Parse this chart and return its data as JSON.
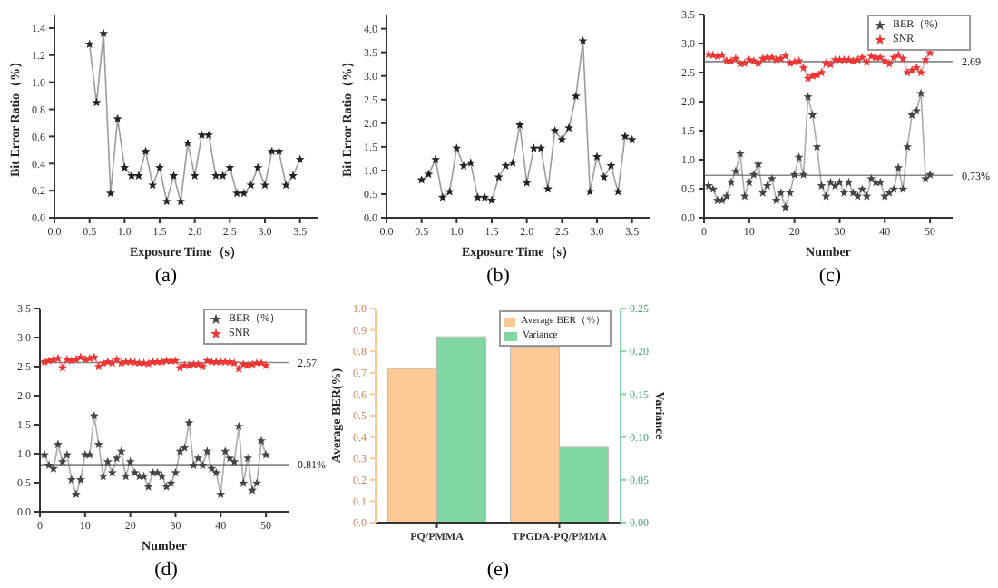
{
  "chart_data": [
    {
      "type": "line",
      "title": "(a)",
      "xlabel": "Exposure Time（s）",
      "ylabel": "Bit Error Ratio（%）",
      "marker": "star",
      "line_style": "solid",
      "legend": false,
      "x": [
        0.5,
        0.6,
        0.7,
        0.8,
        0.9,
        1.0,
        1.1,
        1.2,
        1.3,
        1.4,
        1.5,
        1.6,
        1.7,
        1.8,
        1.9,
        2.0,
        2.1,
        2.2,
        2.3,
        2.4,
        2.5,
        2.6,
        2.7,
        2.8,
        2.9,
        3.0,
        3.1,
        3.2,
        3.3,
        3.4,
        3.5
      ],
      "xlim": [
        0,
        3.75
      ],
      "xticks": [
        {
          "value": 0,
          "label": "0.0"
        },
        {
          "value": 0.5,
          "label": "0.5"
        },
        {
          "value": 1,
          "label": "1.0"
        },
        {
          "value": 1.5,
          "label": "1.5"
        },
        {
          "value": 2,
          "label": "2.0"
        },
        {
          "value": 2.5,
          "label": "2.5"
        },
        {
          "value": 3,
          "label": "3.0"
        },
        {
          "value": 3.5,
          "label": "3.5"
        }
      ],
      "ylim": [
        0,
        1.5
      ],
      "yticks": [
        {
          "value": 0,
          "label": "0.0"
        },
        {
          "value": 0.2,
          "label": "0.2"
        },
        {
          "value": 0.4,
          "label": "0.4"
        },
        {
          "value": 0.6,
          "label": "0.6"
        },
        {
          "value": 0.8,
          "label": "0.8"
        },
        {
          "value": 1,
          "label": "1.0"
        },
        {
          "value": 1.2,
          "label": "1.2"
        },
        {
          "value": 1.4,
          "label": "1.4"
        }
      ],
      "series": [
        {
          "color": "#222222",
          "values": [
            1.28,
            0.85,
            1.36,
            0.18,
            0.73,
            0.37,
            0.31,
            0.31,
            0.49,
            0.24,
            0.37,
            0.12,
            0.31,
            0.12,
            0.55,
            0.31,
            0.61,
            0.61,
            0.31,
            0.31,
            0.37,
            0.18,
            0.18,
            0.24,
            0.37,
            0.24,
            0.49,
            0.49,
            0.24,
            0.31,
            0.43
          ]
        }
      ]
    },
    {
      "type": "line",
      "title": "(b)",
      "xlabel": "Exposure Time（s）",
      "ylabel": "Bit Error Ratio（%）",
      "marker": "star",
      "line_style": "solid",
      "legend": false,
      "x": [
        0.5,
        0.6,
        0.7,
        0.8,
        0.9,
        1.0,
        1.1,
        1.2,
        1.3,
        1.4,
        1.5,
        1.6,
        1.7,
        1.8,
        1.9,
        2.0,
        2.1,
        2.2,
        2.3,
        2.4,
        2.5,
        2.6,
        2.7,
        2.8,
        2.9,
        3.0,
        3.1,
        3.2,
        3.3,
        3.4,
        3.5
      ],
      "xlim": [
        0,
        3.75
      ],
      "xticks": [
        {
          "value": 0,
          "label": "0.0"
        },
        {
          "value": 0.5,
          "label": "0.5"
        },
        {
          "value": 1,
          "label": "1.0"
        },
        {
          "value": 1.5,
          "label": "1.5"
        },
        {
          "value": 2,
          "label": "2.0"
        },
        {
          "value": 2.5,
          "label": "2.5"
        },
        {
          "value": 3,
          "label": "3.0"
        },
        {
          "value": 3.5,
          "label": "3.5"
        }
      ],
      "ylim": [
        0,
        4.3
      ],
      "yticks": [
        {
          "value": 0,
          "label": "0.0"
        },
        {
          "value": 0.5,
          "label": "0.5"
        },
        {
          "value": 1,
          "label": "1.0"
        },
        {
          "value": 1.5,
          "label": "1.5"
        },
        {
          "value": 2,
          "label": "2.0"
        },
        {
          "value": 2.5,
          "label": "2.5"
        },
        {
          "value": 3,
          "label": "3.0"
        },
        {
          "value": 3.5,
          "label": "3.5"
        },
        {
          "value": 4,
          "label": "4.0"
        }
      ],
      "series": [
        {
          "color": "#222222",
          "values": [
            0.8,
            0.92,
            1.23,
            0.43,
            0.55,
            1.47,
            1.1,
            1.16,
            0.43,
            0.43,
            0.37,
            0.86,
            1.1,
            1.16,
            1.96,
            0.74,
            1.47,
            1.47,
            0.61,
            1.84,
            1.65,
            1.9,
            2.57,
            3.74,
            0.55,
            1.29,
            0.86,
            1.1,
            0.55,
            1.72,
            1.65
          ]
        }
      ]
    },
    {
      "type": "line",
      "title": "(c)",
      "xlabel": "Number",
      "marker": "star",
      "line_style": "solid",
      "legend": "top right",
      "x": [
        1,
        2,
        3,
        4,
        5,
        6,
        7,
        8,
        9,
        10,
        11,
        12,
        13,
        14,
        15,
        16,
        17,
        18,
        19,
        20,
        21,
        22,
        23,
        24,
        25,
        26,
        27,
        28,
        29,
        30,
        31,
        32,
        33,
        34,
        35,
        36,
        37,
        38,
        39,
        40,
        41,
        42,
        43,
        44,
        45,
        46,
        47,
        48,
        49,
        50
      ],
      "xlim": [
        0,
        55
      ],
      "xticks": [
        0,
        10,
        20,
        30,
        40,
        50
      ],
      "ylim": [
        0,
        3.5
      ],
      "yticks": [
        {
          "value": 0,
          "label": "0.0"
        },
        {
          "value": 0.5,
          "label": "0.5"
        },
        {
          "value": 1,
          "label": "1.0"
        },
        {
          "value": 1.5,
          "label": "1.5"
        },
        {
          "value": 2,
          "label": "2.0"
        },
        {
          "value": 2.5,
          "label": "2.5"
        },
        {
          "value": 3,
          "label": "3.0"
        },
        {
          "value": 3.5,
          "label": "3.5"
        }
      ],
      "ref_lines": [
        {
          "axis": "y",
          "value": 2.69,
          "label": "2.69",
          "color": "#888888"
        },
        {
          "axis": "y",
          "value": 0.73,
          "label": "0.73%",
          "color": "#888888"
        }
      ],
      "series": [
        {
          "name": "BER（%）",
          "color": "#444444",
          "values": [
            0.55,
            0.49,
            0.3,
            0.3,
            0.37,
            0.61,
            0.8,
            1.1,
            0.37,
            0.61,
            0.74,
            0.92,
            0.43,
            0.55,
            0.67,
            0.3,
            0.43,
            0.18,
            0.43,
            0.74,
            1.04,
            0.74,
            2.08,
            1.77,
            1.22,
            0.55,
            0.37,
            0.61,
            0.55,
            0.61,
            0.43,
            0.61,
            0.43,
            0.37,
            0.49,
            0.37,
            0.67,
            0.61,
            0.61,
            0.37,
            0.43,
            0.49,
            0.86,
            0.49,
            1.22,
            1.77,
            1.84,
            2.14,
            0.67,
            0.74
          ]
        },
        {
          "name": "SNR",
          "color": "#ee3333",
          "values": [
            2.81,
            2.8,
            2.78,
            2.8,
            2.7,
            2.7,
            2.74,
            2.65,
            2.66,
            2.72,
            2.7,
            2.66,
            2.74,
            2.76,
            2.76,
            2.72,
            2.74,
            2.79,
            2.66,
            2.68,
            2.7,
            2.58,
            2.4,
            2.44,
            2.46,
            2.5,
            2.66,
            2.64,
            2.72,
            2.72,
            2.72,
            2.72,
            2.7,
            2.72,
            2.76,
            2.68,
            2.78,
            2.76,
            2.76,
            2.7,
            2.65,
            2.76,
            2.8,
            2.74,
            2.5,
            2.54,
            2.58,
            2.5,
            2.72,
            2.84
          ]
        }
      ]
    },
    {
      "type": "line",
      "title": "(d)",
      "xlabel": "Number",
      "marker": "star",
      "line_style": "solid",
      "legend": "top right",
      "x": [
        1,
        2,
        3,
        4,
        5,
        6,
        7,
        8,
        9,
        10,
        11,
        12,
        13,
        14,
        15,
        16,
        17,
        18,
        19,
        20,
        21,
        22,
        23,
        24,
        25,
        26,
        27,
        28,
        29,
        30,
        31,
        32,
        33,
        34,
        35,
        36,
        37,
        38,
        39,
        40,
        41,
        42,
        43,
        44,
        45,
        46,
        47,
        48,
        49,
        50
      ],
      "xlim": [
        0,
        55
      ],
      "xticks": [
        0,
        10,
        20,
        30,
        40,
        50
      ],
      "ylim": [
        0,
        3.5
      ],
      "yticks": [
        {
          "value": 0,
          "label": "0.0"
        },
        {
          "value": 0.5,
          "label": "0.5"
        },
        {
          "value": 1,
          "label": "1.0"
        },
        {
          "value": 1.5,
          "label": "1.5"
        },
        {
          "value": 2,
          "label": "2.0"
        },
        {
          "value": 2.5,
          "label": "2.5"
        },
        {
          "value": 3,
          "label": "3.0"
        },
        {
          "value": 3.5,
          "label": "3.5"
        }
      ],
      "ref_lines": [
        {
          "axis": "y",
          "value": 2.57,
          "label": "2.57",
          "color": "#888888"
        },
        {
          "axis": "y",
          "value": 0.81,
          "label": "0.81%",
          "color": "#888888"
        }
      ],
      "series": [
        {
          "name": "BER（%）",
          "color": "#444444",
          "values": [
            0.98,
            0.8,
            0.74,
            1.16,
            0.86,
            0.98,
            0.55,
            0.3,
            0.55,
            0.98,
            0.98,
            1.65,
            1.16,
            0.61,
            0.86,
            0.67,
            0.92,
            1.04,
            0.61,
            0.86,
            0.67,
            0.61,
            0.61,
            0.43,
            0.67,
            0.67,
            0.61,
            0.43,
            0.49,
            0.67,
            1.04,
            1.1,
            1.53,
            0.8,
            0.92,
            0.8,
            1.04,
            0.74,
            0.67,
            0.3,
            1.04,
            0.92,
            0.86,
            1.47,
            0.49,
            0.92,
            0.37,
            0.49,
            1.22,
            0.98
          ]
        },
        {
          "name": "SNR",
          "color": "#ee3333",
          "values": [
            2.58,
            2.6,
            2.62,
            2.64,
            2.48,
            2.62,
            2.6,
            2.62,
            2.66,
            2.62,
            2.64,
            2.66,
            2.5,
            2.56,
            2.58,
            2.56,
            2.62,
            2.56,
            2.58,
            2.58,
            2.57,
            2.56,
            2.56,
            2.55,
            2.58,
            2.58,
            2.58,
            2.6,
            2.6,
            2.6,
            2.48,
            2.52,
            2.52,
            2.54,
            2.54,
            2.5,
            2.6,
            2.58,
            2.58,
            2.58,
            2.58,
            2.58,
            2.56,
            2.46,
            2.54,
            2.52,
            2.54,
            2.56,
            2.56,
            2.52
          ]
        }
      ]
    },
    {
      "type": "bar",
      "title": "(e)",
      "ylabel": "Average BER(%)",
      "y2label": "Variance",
      "legend": "top right",
      "categories": [
        "PQ/PMMA",
        "TPGDA-PQ/PMMA"
      ],
      "ylim": [
        0,
        1
      ],
      "yticks": [
        {
          "value": 0,
          "label": "0.0"
        },
        {
          "value": 0.1,
          "label": "0.1"
        },
        {
          "value": 0.2,
          "label": "0.2"
        },
        {
          "value": 0.3,
          "label": "0.3"
        },
        {
          "value": 0.4,
          "label": "0.4"
        },
        {
          "value": 0.5,
          "label": "0.5"
        },
        {
          "value": 0.6,
          "label": "0.6"
        },
        {
          "value": 0.7,
          "label": "0.7"
        },
        {
          "value": 0.8,
          "label": "0.8"
        },
        {
          "value": 0.9,
          "label": "0.9"
        },
        {
          "value": 1,
          "label": "1.0"
        }
      ],
      "y2lim": [
        0,
        0.25
      ],
      "y2ticks": [
        {
          "value": 0,
          "label": "0.00"
        },
        {
          "value": 0.05,
          "label": "0.05"
        },
        {
          "value": 0.1,
          "label": "0.10"
        },
        {
          "value": 0.15,
          "label": "0.15"
        },
        {
          "value": 0.2,
          "label": "0.20"
        },
        {
          "value": 0.25,
          "label": "0.25"
        }
      ],
      "series": [
        {
          "name": "Average BER（%）",
          "color": "#fdc995",
          "values": [
            0.72,
            0.82
          ]
        },
        {
          "name": "Variance",
          "color": "#80d8a0",
          "axis": "y2",
          "values": [
            0.217,
            0.088
          ]
        }
      ]
    }
  ]
}
